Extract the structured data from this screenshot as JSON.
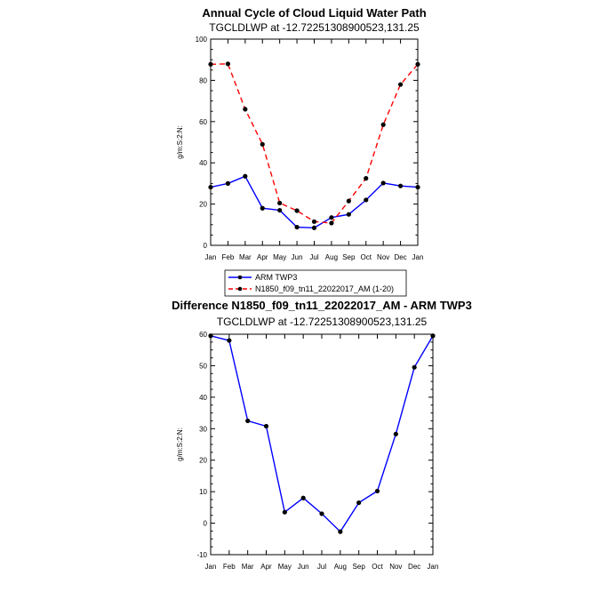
{
  "chart_data": [
    {
      "type": "line",
      "title": "Annual Cycle of Cloud Liquid Water Path",
      "subtitle": "TGCLDLWP at -12.72251308900523,131.25",
      "ylabel": "g/m:S:2:N:",
      "xlabel": "",
      "categories": [
        "Jan",
        "Feb",
        "Mar",
        "Apr",
        "May",
        "Jun",
        "Jul",
        "Aug",
        "Sep",
        "Oct",
        "Nov",
        "Dec",
        "Jan"
      ],
      "ylim": [
        0,
        100
      ],
      "yticks": [
        0,
        20,
        40,
        60,
        80,
        100
      ],
      "series": [
        {
          "name": "ARM TWP3",
          "color": "#0000ff",
          "dash": "solid",
          "values": [
            28.2,
            30.0,
            33.5,
            18.0,
            17.0,
            8.8,
            8.5,
            13.5,
            15.0,
            22.0,
            30.2,
            28.8,
            28.2
          ]
        },
        {
          "name": "N1850_f09_tn11_22022017_AM (1-20)",
          "color": "#ff0000",
          "dash": "dashed",
          "values": [
            87.8,
            88.0,
            66.0,
            49.0,
            20.5,
            16.8,
            11.5,
            10.8,
            21.5,
            32.5,
            58.5,
            78.0,
            87.8
          ]
        }
      ],
      "legend": "below"
    },
    {
      "type": "line",
      "title": "Difference N1850_f09_tn11_22022017_AM - ARM TWP3",
      "subtitle": "TGCLDLWP at -12.72251308900523,131.25",
      "ylabel": "g/m:S:2:N:",
      "xlabel": "",
      "categories": [
        "Jan",
        "Feb",
        "Mar",
        "Apr",
        "May",
        "Jun",
        "Jul",
        "Aug",
        "Sep",
        "Oct",
        "Nov",
        "Dec",
        "Jan"
      ],
      "ylim": [
        -10,
        60
      ],
      "yticks": [
        -10,
        0,
        10,
        20,
        30,
        40,
        50,
        60
      ],
      "series": [
        {
          "name": "Difference",
          "color": "#0000ff",
          "dash": "solid",
          "values": [
            59.5,
            58.0,
            32.5,
            30.8,
            3.5,
            8.0,
            3.0,
            -2.7,
            6.5,
            10.2,
            28.3,
            49.5,
            59.5
          ]
        }
      ]
    }
  ]
}
